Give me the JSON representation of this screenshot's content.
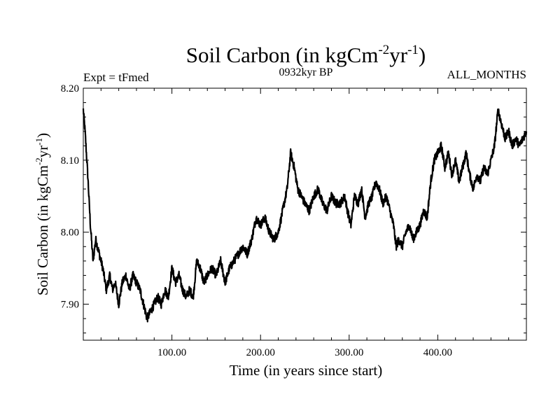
{
  "chart_data": {
    "type": "line",
    "title": {
      "main": "Soil Carbon (in kgCm",
      "sup1": "-2",
      "mid": "yr",
      "sup2": "-1",
      "end": ")"
    },
    "subtitle_left": "Expt = tFmed",
    "subtitle_center": "0932kyr BP",
    "subtitle_right": "ALL_MONTHS",
    "xlabel": "Time (in years since start)",
    "ylabel": {
      "main": "Soil Carbon (in kgCm",
      "sup1": "-2",
      "mid": "yr",
      "sup2": "-1",
      "end": ")"
    },
    "xlim": [
      0,
      500
    ],
    "ylim": [
      7.85,
      8.2
    ],
    "x_major_ticks": [
      100,
      200,
      300,
      400
    ],
    "x_tick_labels": [
      "100.00",
      "200.00",
      "300.00",
      "400.00"
    ],
    "y_major_ticks": [
      7.9,
      8.0,
      8.1,
      8.2
    ],
    "y_tick_labels": [
      "7.90",
      "8.00",
      "8.10",
      "8.20"
    ],
    "grid": false,
    "series": [
      {
        "name": "Soil Carbon",
        "x": [
          0,
          2,
          5,
          8,
          11,
          14,
          18,
          22,
          26,
          30,
          33,
          36,
          40,
          44,
          48,
          52,
          56,
          60,
          64,
          68,
          72,
          76,
          80,
          84,
          88,
          92,
          96,
          100,
          104,
          108,
          112,
          116,
          120,
          124,
          128,
          132,
          136,
          140,
          145,
          150,
          155,
          160,
          165,
          170,
          175,
          180,
          185,
          190,
          195,
          200,
          205,
          210,
          215,
          220,
          225,
          230,
          234,
          238,
          242,
          246,
          250,
          255,
          260,
          265,
          270,
          275,
          280,
          285,
          290,
          295,
          298,
          302,
          306,
          310,
          314,
          318,
          322,
          326,
          330,
          334,
          338,
          342,
          346,
          350,
          353,
          356,
          360,
          364,
          368,
          372,
          376,
          380,
          384,
          388,
          392,
          396,
          400,
          404,
          408,
          412,
          416,
          420,
          424,
          428,
          432,
          436,
          440,
          444,
          448,
          452,
          456,
          460,
          464,
          468,
          472,
          476,
          480,
          484,
          488,
          492,
          496,
          500
        ],
        "values": [
          8.17,
          8.14,
          8.08,
          8.01,
          7.96,
          7.99,
          7.97,
          7.95,
          7.92,
          7.94,
          7.92,
          7.93,
          7.9,
          7.93,
          7.94,
          7.92,
          7.94,
          7.93,
          7.92,
          7.9,
          7.88,
          7.89,
          7.9,
          7.91,
          7.9,
          7.92,
          7.91,
          7.95,
          7.93,
          7.94,
          7.92,
          7.91,
          7.92,
          7.91,
          7.96,
          7.95,
          7.93,
          7.94,
          7.95,
          7.94,
          7.96,
          7.93,
          7.95,
          7.96,
          7.97,
          7.98,
          7.97,
          7.99,
          8.02,
          8.01,
          8.02,
          8.0,
          7.99,
          8.0,
          8.03,
          8.06,
          8.11,
          8.09,
          8.06,
          8.05,
          8.04,
          8.03,
          8.05,
          8.06,
          8.04,
          8.03,
          8.05,
          8.04,
          8.04,
          8.05,
          8.03,
          8.01,
          8.05,
          8.04,
          8.06,
          8.02,
          8.04,
          8.05,
          8.07,
          8.06,
          8.04,
          8.05,
          8.03,
          8.01,
          7.98,
          7.99,
          7.98,
          8.0,
          8.01,
          7.99,
          8.0,
          8.01,
          8.03,
          8.02,
          8.07,
          8.1,
          8.11,
          8.12,
          8.09,
          8.11,
          8.08,
          8.1,
          8.07,
          8.09,
          8.11,
          8.08,
          8.06,
          8.08,
          8.07,
          8.09,
          8.08,
          8.1,
          8.12,
          8.17,
          8.15,
          8.13,
          8.14,
          8.12,
          8.13,
          8.12,
          8.13,
          8.14
        ]
      }
    ]
  }
}
